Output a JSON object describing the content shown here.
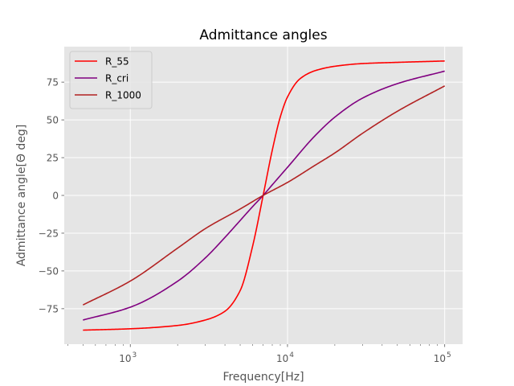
{
  "chart_data": {
    "type": "line",
    "title": "Admittance angles",
    "xlabel": "Frequency[Hz]",
    "ylabel": "Admittance angle[Θ deg]",
    "x_scale": "log",
    "xlim": [
      380,
      130000
    ],
    "ylim": [
      -98.5,
      98.5
    ],
    "x_ticks": [
      {
        "value": 1000,
        "base": "10",
        "exp": "3"
      },
      {
        "value": 10000,
        "base": "10",
        "exp": "4"
      },
      {
        "value": 100000,
        "base": "10",
        "exp": "5"
      }
    ],
    "y_ticks": [
      -75,
      -50,
      -25,
      0,
      25,
      50,
      75
    ],
    "grid": true,
    "legend_position": "top-left",
    "background": "#e5e5e5",
    "series": [
      {
        "name": "R_55",
        "color": "#ff0000",
        "x": [
          500,
          1000,
          2000,
          3000,
          4000,
          5000,
          6000,
          7000,
          8000,
          9000,
          10000,
          12000,
          15000,
          20000,
          30000,
          50000,
          100000
        ],
        "y": [
          -89.2,
          -88.3,
          -86.1,
          -82.5,
          -76.7,
          -63,
          -33.6,
          0,
          29.9,
          52,
          65.2,
          77.2,
          82.6,
          85.5,
          87.3,
          88.1,
          89
        ]
      },
      {
        "name": "R_cri",
        "color": "#800080",
        "x": [
          500,
          1000,
          2000,
          3000,
          4000,
          5000,
          6000,
          7000,
          8000,
          10000,
          15000,
          20000,
          30000,
          50000,
          100000
        ],
        "y": [
          -82.5,
          -74,
          -56.8,
          -41.4,
          -27.8,
          -16.6,
          -7.4,
          0,
          7,
          18.6,
          39.6,
          51.8,
          64.4,
          74,
          82.3
        ]
      },
      {
        "name": "R_1000",
        "color": "#b22222",
        "x": [
          500,
          1000,
          2000,
          3000,
          5000,
          7000,
          10000,
          15000,
          20000,
          30000,
          50000,
          100000
        ],
        "y": [
          -72.5,
          -56.7,
          -34.9,
          -22,
          -9,
          0,
          8.6,
          20,
          28.1,
          41.1,
          55.7,
          72.5
        ]
      }
    ]
  }
}
